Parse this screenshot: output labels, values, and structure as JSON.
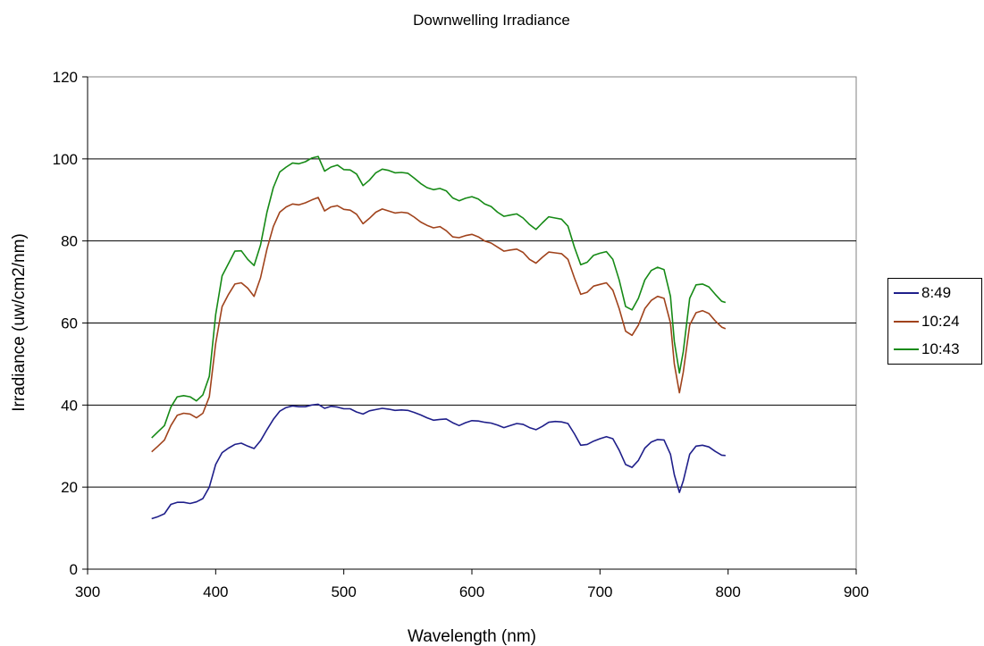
{
  "chart_data": {
    "type": "line",
    "title": "Downwelling Irradiance",
    "xlabel": "Wavelength (nm)",
    "ylabel": "Irradiance (uw/cm2/nm)",
    "xlim": [
      300,
      900
    ],
    "ylim": [
      0,
      120
    ],
    "xticks": [
      300,
      400,
      500,
      600,
      700,
      800,
      900
    ],
    "yticks": [
      0,
      20,
      40,
      60,
      80,
      100,
      120
    ],
    "grid": "horizontal",
    "legend_position": "right",
    "series": [
      {
        "name": "8:49",
        "color": "#1F1F8A",
        "x": [
          350,
          355,
          360,
          365,
          370,
          375,
          380,
          385,
          390,
          395,
          400,
          405,
          410,
          415,
          420,
          425,
          430,
          435,
          440,
          445,
          450,
          455,
          460,
          465,
          470,
          475,
          480,
          485,
          490,
          495,
          500,
          505,
          510,
          515,
          520,
          525,
          530,
          535,
          540,
          545,
          550,
          555,
          560,
          565,
          570,
          575,
          580,
          585,
          590,
          595,
          600,
          605,
          610,
          615,
          620,
          625,
          630,
          635,
          640,
          645,
          650,
          655,
          660,
          665,
          670,
          675,
          680,
          685,
          690,
          695,
          700,
          705,
          710,
          715,
          720,
          725,
          730,
          735,
          740,
          745,
          750,
          755,
          758,
          762,
          765,
          770,
          775,
          780,
          785,
          790,
          795,
          798
        ],
        "y": [
          12.3,
          12.8,
          13.5,
          15.8,
          16.3,
          16.3,
          16.0,
          16.4,
          17.2,
          20.0,
          25.5,
          28.4,
          29.5,
          30.4,
          30.7,
          30.0,
          29.4,
          31.3,
          34.0,
          36.5,
          38.5,
          39.4,
          39.8,
          39.6,
          39.6,
          40.0,
          40.2,
          39.2,
          39.7,
          39.5,
          39.1,
          39.1,
          38.3,
          37.8,
          38.6,
          38.9,
          39.2,
          39.0,
          38.7,
          38.8,
          38.7,
          38.2,
          37.6,
          36.9,
          36.3,
          36.5,
          36.6,
          35.7,
          35.0,
          35.7,
          36.2,
          36.1,
          35.8,
          35.6,
          35.1,
          34.5,
          35.0,
          35.5,
          35.3,
          34.5,
          34.0,
          34.8,
          35.8,
          36.0,
          35.9,
          35.5,
          33.0,
          30.2,
          30.4,
          31.2,
          31.8,
          32.3,
          31.8,
          29.0,
          25.5,
          24.8,
          26.5,
          29.5,
          31.0,
          31.6,
          31.5,
          28.0,
          23.0,
          18.7,
          21.5,
          28.0,
          30.0,
          30.2,
          29.8,
          28.7,
          27.8,
          27.7
        ]
      },
      {
        "name": "10:24",
        "color": "#A0431C",
        "x": [
          350,
          355,
          360,
          365,
          370,
          375,
          380,
          385,
          390,
          395,
          400,
          405,
          410,
          415,
          420,
          425,
          430,
          435,
          440,
          445,
          450,
          455,
          460,
          465,
          470,
          475,
          480,
          485,
          490,
          495,
          500,
          505,
          510,
          515,
          520,
          525,
          530,
          535,
          540,
          545,
          550,
          555,
          560,
          565,
          570,
          575,
          580,
          585,
          590,
          595,
          600,
          605,
          610,
          615,
          620,
          625,
          630,
          635,
          640,
          645,
          650,
          655,
          660,
          665,
          670,
          675,
          680,
          685,
          690,
          695,
          700,
          705,
          710,
          715,
          720,
          725,
          730,
          735,
          740,
          745,
          750,
          755,
          758,
          762,
          765,
          770,
          775,
          780,
          785,
          790,
          795,
          798
        ],
        "y": [
          28.6,
          30.0,
          31.5,
          35.0,
          37.5,
          38.0,
          37.8,
          36.9,
          38.0,
          42.0,
          55.0,
          64.0,
          67.0,
          69.5,
          69.8,
          68.5,
          66.5,
          71.0,
          78.0,
          83.5,
          87.0,
          88.3,
          89.0,
          88.8,
          89.3,
          90.0,
          90.6,
          87.3,
          88.3,
          88.6,
          87.7,
          87.5,
          86.5,
          84.2,
          85.5,
          87.0,
          87.8,
          87.3,
          86.8,
          87.0,
          86.8,
          85.8,
          84.6,
          83.8,
          83.2,
          83.5,
          82.5,
          81.0,
          80.8,
          81.3,
          81.6,
          81.0,
          80.0,
          79.5,
          78.5,
          77.5,
          77.8,
          78.0,
          77.2,
          75.5,
          74.6,
          76.0,
          77.3,
          77.1,
          76.9,
          75.5,
          71.0,
          67.0,
          67.5,
          69.0,
          69.4,
          69.8,
          68.0,
          63.5,
          58.0,
          57.0,
          59.5,
          63.5,
          65.5,
          66.5,
          66.0,
          60.0,
          50.0,
          43.0,
          48.0,
          59.5,
          62.5,
          63.0,
          62.3,
          60.5,
          59.0,
          58.6
        ]
      },
      {
        "name": "10:43",
        "color": "#168A16",
        "x": [
          350,
          355,
          360,
          365,
          370,
          375,
          380,
          385,
          390,
          395,
          400,
          405,
          410,
          415,
          420,
          425,
          430,
          435,
          440,
          445,
          450,
          455,
          460,
          465,
          470,
          475,
          480,
          485,
          490,
          495,
          500,
          505,
          510,
          515,
          520,
          525,
          530,
          535,
          540,
          545,
          550,
          555,
          560,
          565,
          570,
          575,
          580,
          585,
          590,
          595,
          600,
          605,
          610,
          615,
          620,
          625,
          630,
          635,
          640,
          645,
          650,
          655,
          660,
          665,
          670,
          675,
          680,
          685,
          690,
          695,
          700,
          705,
          710,
          715,
          720,
          725,
          730,
          735,
          740,
          745,
          750,
          755,
          758,
          762,
          765,
          770,
          775,
          780,
          785,
          790,
          795,
          798
        ],
        "y": [
          32.0,
          33.5,
          35.0,
          39.5,
          42.0,
          42.3,
          42.0,
          41.0,
          42.5,
          47.0,
          62.0,
          71.5,
          74.5,
          77.5,
          77.6,
          75.5,
          74.0,
          79.0,
          87.0,
          93.0,
          96.8,
          98.0,
          99.0,
          98.8,
          99.3,
          100.2,
          100.6,
          97.0,
          98.0,
          98.5,
          97.4,
          97.3,
          96.3,
          93.5,
          94.8,
          96.6,
          97.5,
          97.2,
          96.6,
          96.7,
          96.5,
          95.3,
          94.0,
          93.0,
          92.5,
          92.8,
          92.2,
          90.5,
          89.8,
          90.4,
          90.8,
          90.2,
          89.0,
          88.4,
          87.0,
          86.0,
          86.3,
          86.6,
          85.6,
          84.0,
          82.8,
          84.4,
          85.9,
          85.6,
          85.3,
          83.6,
          78.5,
          74.2,
          74.8,
          76.5,
          77.0,
          77.4,
          75.5,
          70.5,
          64.0,
          63.2,
          66.0,
          70.5,
          72.8,
          73.6,
          73.0,
          66.5,
          55.5,
          47.8,
          53.0,
          66.0,
          69.3,
          69.5,
          68.8,
          67.0,
          65.3,
          65.0
        ]
      }
    ]
  }
}
